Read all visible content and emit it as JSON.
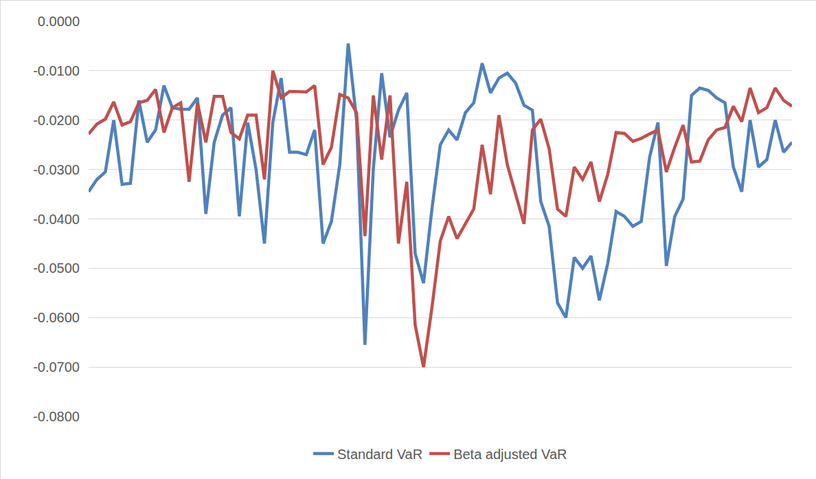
{
  "chart_data": {
    "type": "line",
    "categories": [
      null,
      null,
      null,
      null,
      null,
      null,
      null,
      null,
      null,
      null,
      null,
      null,
      null,
      null,
      null,
      null,
      null,
      null,
      null,
      null,
      null,
      null,
      null,
      null,
      null,
      null,
      null,
      null,
      null,
      null,
      null,
      null,
      null,
      null,
      null,
      null,
      null,
      null,
      null,
      null,
      null,
      null,
      null,
      null,
      null,
      null,
      null,
      null,
      null,
      null,
      null,
      null,
      null,
      null,
      null,
      null,
      null,
      null,
      null,
      null,
      null,
      null,
      null,
      null,
      null,
      null,
      null,
      null,
      null,
      null,
      null,
      null,
      null,
      null,
      null,
      null,
      null,
      null,
      null,
      null,
      null,
      null,
      null,
      null,
      null
    ],
    "series": [
      {
        "name": "Standard VaR",
        "color": "#4f81bd",
        "values": [
          -0.0345,
          -0.032,
          -0.0305,
          -0.02,
          -0.033,
          -0.0328,
          -0.016,
          -0.0245,
          -0.022,
          -0.013,
          -0.0175,
          -0.0178,
          -0.0178,
          -0.0155,
          -0.039,
          -0.0245,
          -0.019,
          -0.0175,
          -0.0395,
          -0.0205,
          -0.03,
          -0.045,
          -0.0205,
          -0.0115,
          -0.0265,
          -0.0265,
          -0.027,
          -0.022,
          -0.045,
          -0.0405,
          -0.029,
          -0.0045,
          -0.02,
          -0.0655,
          -0.03,
          -0.0105,
          -0.0235,
          -0.018,
          -0.0145,
          -0.047,
          -0.053,
          -0.038,
          -0.025,
          -0.022,
          -0.024,
          -0.0185,
          -0.0165,
          -0.0085,
          -0.0145,
          -0.0115,
          -0.0105,
          -0.0125,
          -0.017,
          -0.018,
          -0.0365,
          -0.0415,
          -0.057,
          -0.06,
          -0.0478,
          -0.05,
          -0.0475,
          -0.0565,
          -0.049,
          -0.0385,
          -0.0395,
          -0.0415,
          -0.0405,
          -0.0275,
          -0.0205,
          -0.0495,
          -0.0395,
          -0.036,
          -0.015,
          -0.0135,
          -0.014,
          -0.0155,
          -0.0165,
          -0.0295,
          -0.0345,
          -0.02,
          -0.0295,
          -0.028,
          -0.02,
          -0.0265,
          -0.0245
        ]
      },
      {
        "name": "Beta adjusted VaR",
        "color": "#c0504d",
        "values": [
          -0.0228,
          -0.0208,
          -0.0198,
          -0.0163,
          -0.021,
          -0.0203,
          -0.0165,
          -0.016,
          -0.0138,
          -0.0225,
          -0.0175,
          -0.0165,
          -0.0325,
          -0.0165,
          -0.0245,
          -0.0152,
          -0.0152,
          -0.0225,
          -0.0238,
          -0.019,
          -0.019,
          -0.032,
          -0.01,
          -0.0155,
          -0.0142,
          -0.0142,
          -0.0143,
          -0.013,
          -0.029,
          -0.0255,
          -0.0148,
          -0.0155,
          -0.0185,
          -0.0435,
          -0.015,
          -0.028,
          -0.015,
          -0.045,
          -0.0325,
          -0.0615,
          -0.07,
          -0.058,
          -0.0445,
          -0.0395,
          -0.044,
          -0.041,
          -0.038,
          -0.025,
          -0.035,
          -0.019,
          -0.029,
          -0.035,
          -0.041,
          -0.022,
          -0.0198,
          -0.0258,
          -0.038,
          -0.0395,
          -0.0295,
          -0.032,
          -0.0285,
          -0.0365,
          -0.031,
          -0.0225,
          -0.0227,
          -0.0243,
          -0.0237,
          -0.0228,
          -0.022,
          -0.0305,
          -0.0255,
          -0.021,
          -0.0285,
          -0.0283,
          -0.024,
          -0.022,
          -0.0215,
          -0.0172,
          -0.0203,
          -0.0135,
          -0.0185,
          -0.0175,
          -0.0135,
          -0.016,
          -0.0172
        ]
      }
    ],
    "ylim": [
      -0.08,
      0
    ],
    "yticks": [
      {
        "value": 0,
        "label": "0.0000"
      },
      {
        "value": -0.01,
        "label": "-0.0100"
      },
      {
        "value": -0.02,
        "label": "-0.0200"
      },
      {
        "value": -0.03,
        "label": "-0.0300"
      },
      {
        "value": -0.04,
        "label": "-0.0400"
      },
      {
        "value": -0.05,
        "label": "-0.0500"
      },
      {
        "value": -0.06,
        "label": "-0.0600"
      },
      {
        "value": -0.07,
        "label": "-0.0700"
      },
      {
        "value": -0.08,
        "label": "-0.0800"
      }
    ],
    "grid": true,
    "legend": "bottom",
    "tick_labels": "y"
  }
}
